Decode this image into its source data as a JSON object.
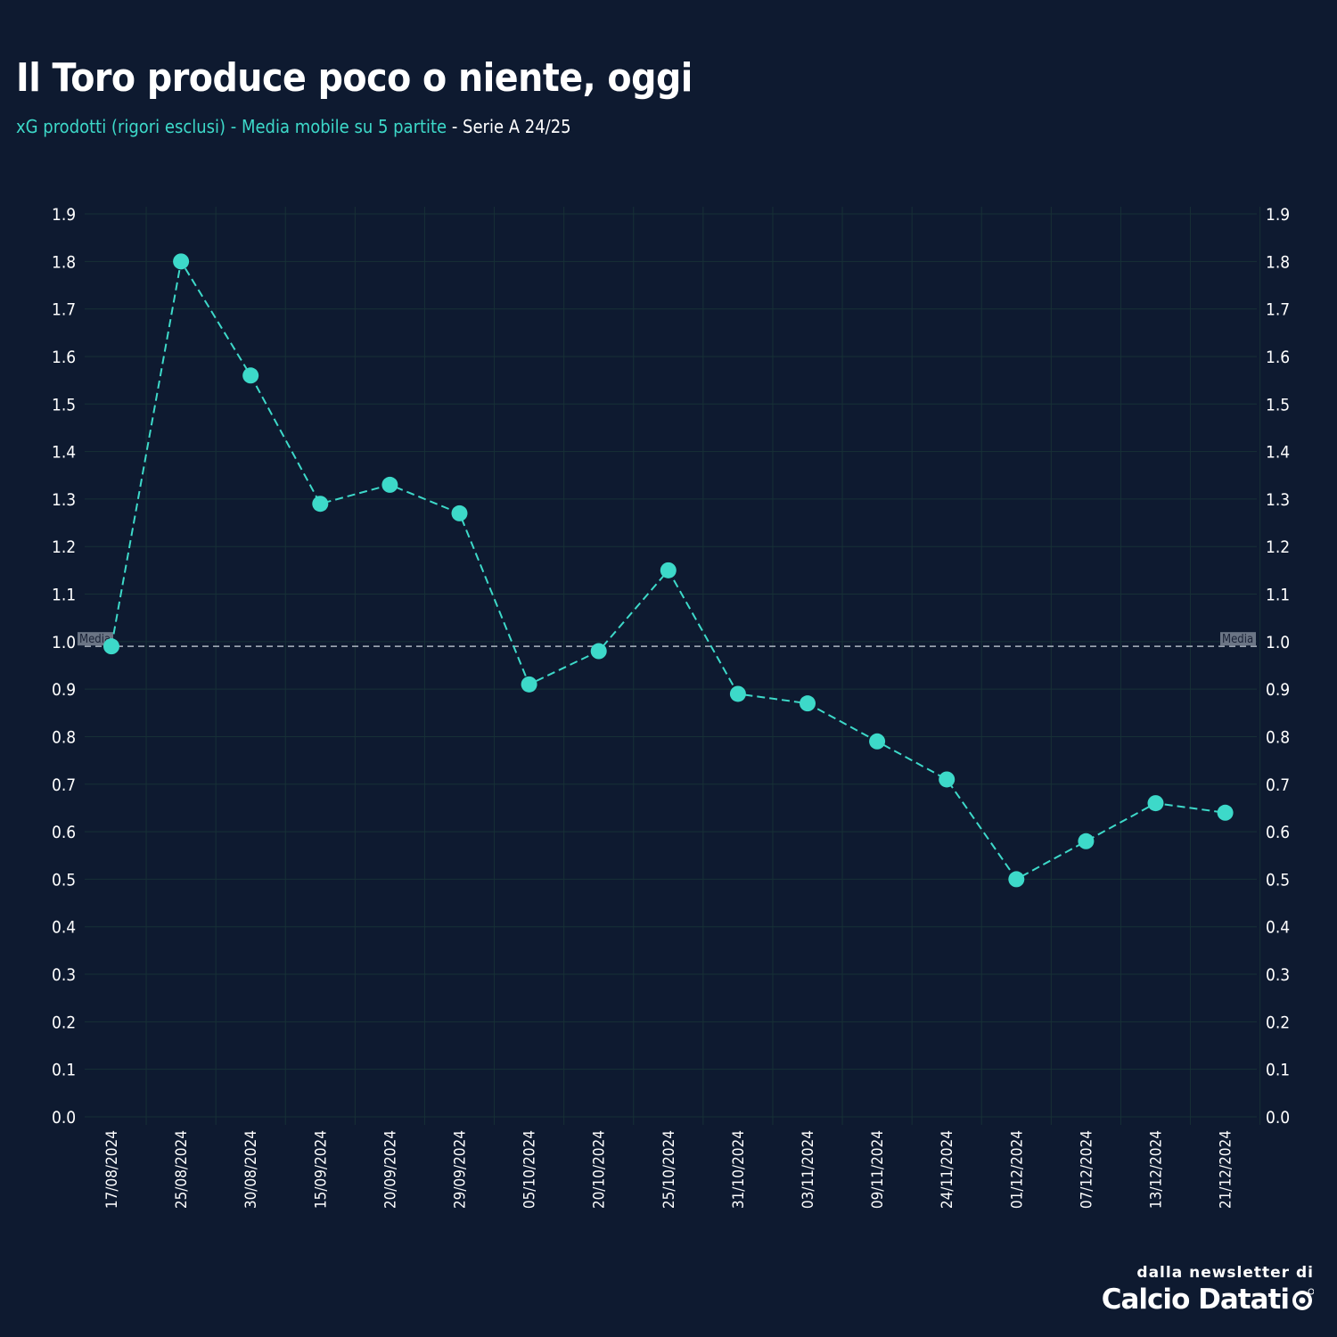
{
  "header": {
    "title": "Il Toro produce poco o niente, oggi",
    "subtitle_accent": "xG prodotti (rigori esclusi) - Media mobile su 5 partite",
    "subtitle_plain": " - Serie A 24/25"
  },
  "footer": {
    "credit": "dalla newsletter di",
    "brand": "Calcio Datati"
  },
  "colors": {
    "background": "#0e1a30",
    "accent": "#3dd9c9",
    "grid": "#173036",
    "mean_line": "#c9d1db"
  },
  "chart_data": {
    "type": "line",
    "title": "Il Toro produce poco o niente, oggi",
    "categories": [
      "17/08/2024",
      "25/08/2024",
      "30/08/2024",
      "15/09/2024",
      "20/09/2024",
      "29/09/2024",
      "05/10/2024",
      "20/10/2024",
      "25/10/2024",
      "31/10/2024",
      "03/11/2024",
      "09/11/2024",
      "24/11/2024",
      "01/12/2024",
      "07/12/2024",
      "13/12/2024",
      "21/12/2024"
    ],
    "values": [
      0.99,
      1.8,
      1.56,
      1.29,
      1.33,
      1.27,
      0.91,
      0.98,
      1.15,
      0.89,
      0.87,
      0.79,
      0.71,
      0.5,
      0.58,
      0.66,
      0.64
    ],
    "ylim": [
      0,
      1.9
    ],
    "yticks": [
      "0.0",
      "0.1",
      "0.2",
      "0.3",
      "0.4",
      "0.5",
      "0.6",
      "0.7",
      "0.8",
      "0.9",
      "1.0",
      "1.1",
      "1.2",
      "1.3",
      "1.4",
      "1.5",
      "1.6",
      "1.7",
      "1.8",
      "1.9"
    ],
    "xlabel": "",
    "ylabel": "",
    "grid": true,
    "y_axis_both_sides": true,
    "reference_line": {
      "label": "Media",
      "value": 0.99
    }
  }
}
